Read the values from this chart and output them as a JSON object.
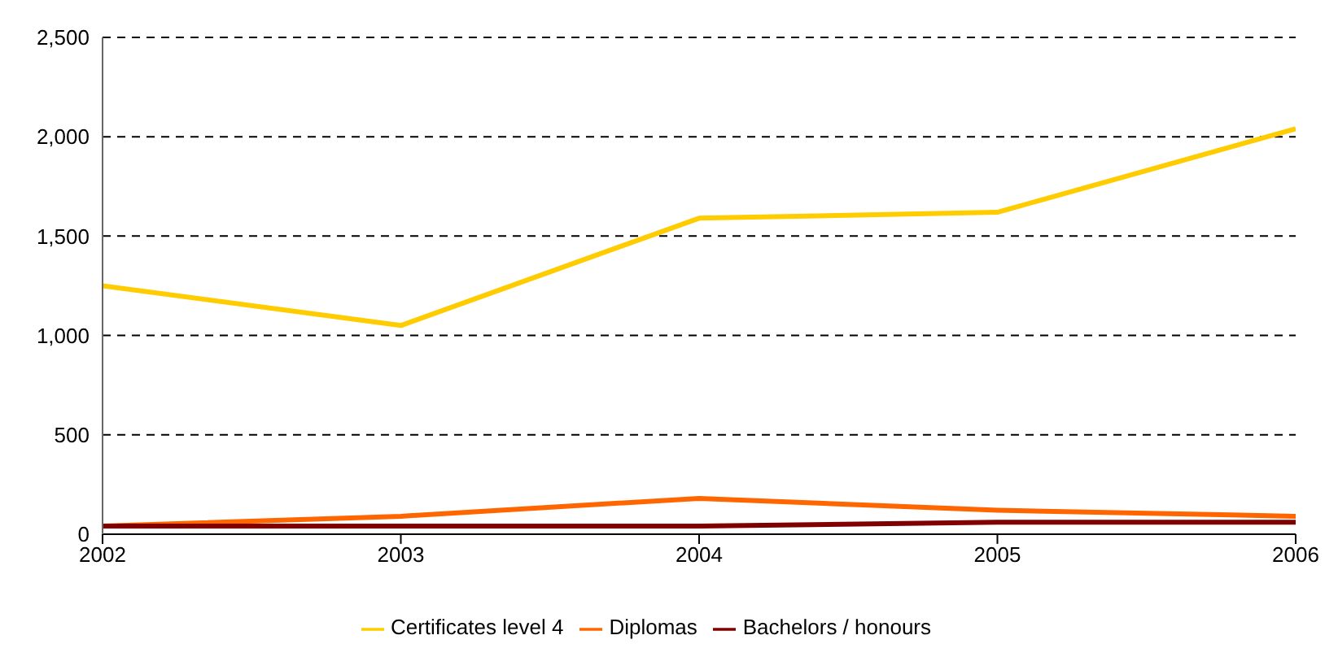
{
  "chart_data": {
    "type": "line",
    "x": [
      2002,
      2003,
      2004,
      2005,
      2006
    ],
    "xlim": [
      2002,
      2006
    ],
    "xticks": [
      2002,
      2003,
      2004,
      2005,
      2006
    ],
    "ylim": [
      0,
      2500
    ],
    "yticks": [
      {
        "value": 0,
        "label": "0"
      },
      {
        "value": 500,
        "label": "500"
      },
      {
        "value": 1000,
        "label": "1,000"
      },
      {
        "value": 1500,
        "label": "1,500"
      },
      {
        "value": 2000,
        "label": "2,000"
      },
      {
        "value": 2500,
        "label": "2,500"
      }
    ],
    "grid": "y",
    "legend": "bottom",
    "marker": "none",
    "line_style": "solid",
    "series": [
      {
        "name": "Certificates level 4",
        "color": "#ffcc00",
        "values": [
          1250,
          1050,
          1590,
          1620,
          2040
        ]
      },
      {
        "name": "Diplomas",
        "color": "#ff6600",
        "values": [
          40,
          90,
          180,
          120,
          90
        ]
      },
      {
        "name": "Bachelors / honours",
        "color": "#800000",
        "values": [
          40,
          40,
          40,
          60,
          60
        ]
      }
    ]
  }
}
